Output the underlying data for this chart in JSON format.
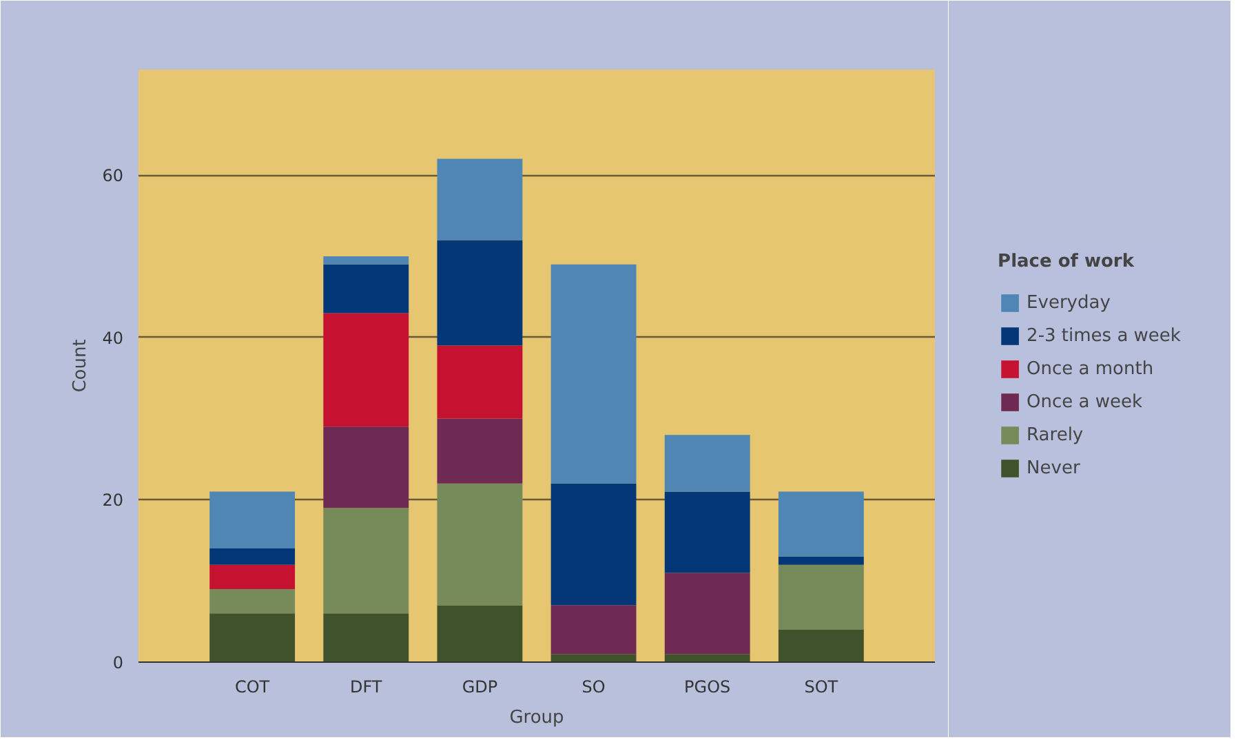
{
  "chart_data": {
    "type": "bar",
    "stacked": true,
    "xlabel": "Group",
    "ylabel": "Count",
    "legend_title": "Place of work",
    "legend": "right",
    "grid": "y",
    "categories": [
      "COT",
      "DFT",
      "GDP",
      "SO",
      "PGOS",
      "SOT"
    ],
    "ylim": [
      0,
      73
    ],
    "yticks": [
      0,
      20,
      40,
      60
    ],
    "series": [
      {
        "name": "Never",
        "color": "#40522b",
        "values": [
          6,
          6,
          7,
          1,
          1,
          4
        ]
      },
      {
        "name": "Rarely",
        "color": "#778a5a",
        "values": [
          3,
          13,
          15,
          0,
          0,
          8
        ]
      },
      {
        "name": "Once a week",
        "color": "#6e2a52",
        "values": [
          0,
          10,
          8,
          6,
          10,
          0
        ]
      },
      {
        "name": "Once a month",
        "color": "#c41230",
        "values": [
          3,
          14,
          9,
          0,
          0,
          0
        ]
      },
      {
        "name": "2-3 times a week",
        "color": "#033778",
        "values": [
          2,
          6,
          13,
          15,
          10,
          1
        ]
      },
      {
        "name": "Everyday",
        "color": "#5086b3",
        "values": [
          7,
          1,
          10,
          27,
          7,
          8
        ]
      }
    ]
  }
}
